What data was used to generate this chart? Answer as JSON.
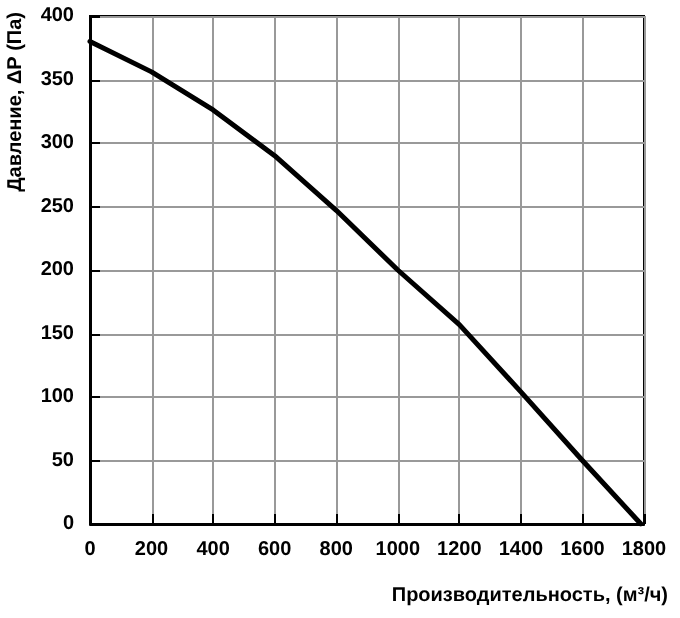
{
  "chart_data": {
    "type": "line",
    "xlabel": "Производительность, (м³/ч)",
    "ylabel": "Давление, ΔР (Па)",
    "x": [
      0,
      200,
      400,
      600,
      800,
      1000,
      1200,
      1400,
      1600,
      1790
    ],
    "series": [
      {
        "color": "#000000",
        "values": [
          380,
          356,
          326,
          290,
          247,
          200,
          157,
          104,
          50,
          0
        ]
      }
    ],
    "xlim": [
      0,
      1800
    ],
    "xticks": [
      0,
      200,
      400,
      600,
      800,
      1000,
      1200,
      1400,
      1600,
      1800
    ],
    "ylim": [
      0,
      400
    ],
    "yticks": [
      0,
      50,
      100,
      150,
      200,
      250,
      300,
      350,
      400
    ],
    "grid": true,
    "marker": "none",
    "line_style": "solid"
  }
}
